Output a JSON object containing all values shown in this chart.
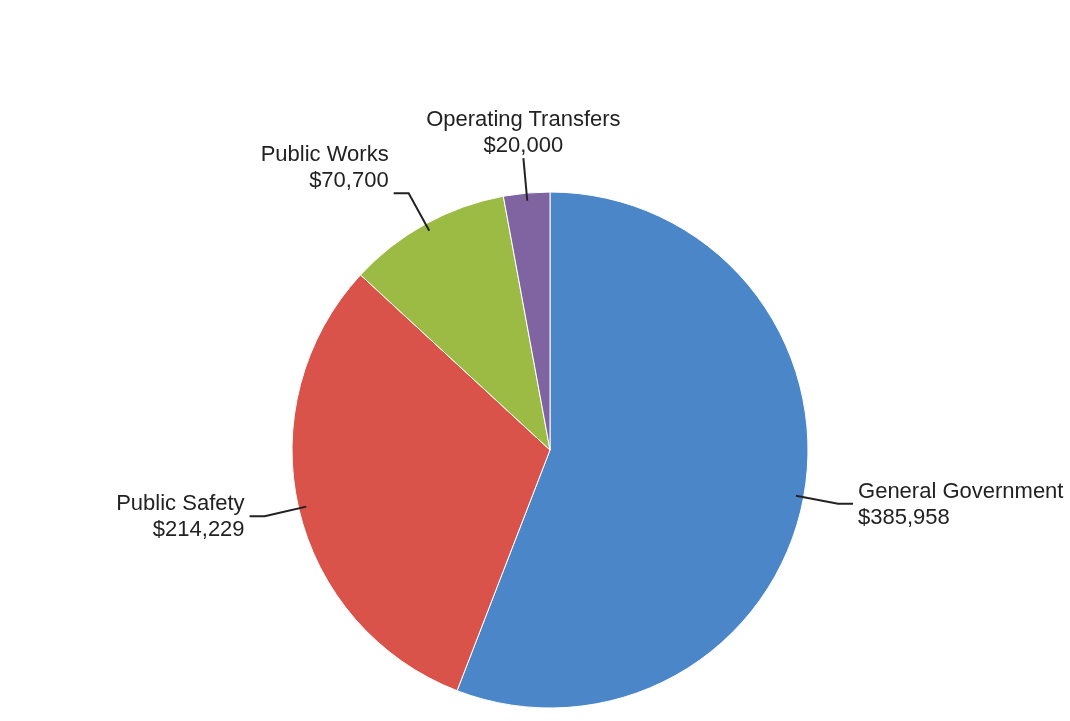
{
  "chart_data": {
    "type": "pie",
    "categories": [
      "General Government",
      "Public Safety",
      "Public Works",
      "Operating Transfers"
    ],
    "values": [
      385958,
      214229,
      70700,
      20000
    ],
    "value_labels": [
      "$385,958",
      "$214,229",
      "$70,700",
      "$20,000"
    ],
    "colors": [
      "#4a86c8",
      "#d9534a",
      "#9bbb45",
      "#8064a2"
    ],
    "legend": false
  }
}
